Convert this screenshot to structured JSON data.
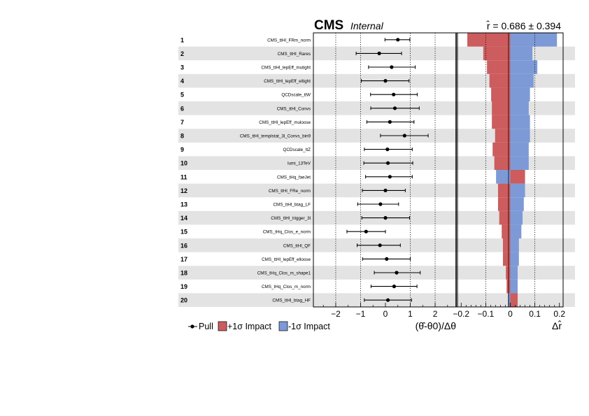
{
  "header": {
    "cms": "CMS",
    "internal": "Internal",
    "rhat_text": "r̂ = 0.686 ± 0.394"
  },
  "legend": {
    "pull": "Pull",
    "plus": "+1σ Impact",
    "minus": "-1σ Impact"
  },
  "colors": {
    "plus_impact": "#cc5c5e",
    "minus_impact": "#7d9ad6",
    "band": "#e3e3e3",
    "point": "#000000"
  },
  "chart_data": {
    "type": "scatter",
    "title": "",
    "pull_axis": {
      "label": "(θ̂-θ0)/Δθ",
      "range": [
        -2.9,
        2.9
      ],
      "ticks": [
        -2,
        -1,
        0,
        1,
        2
      ],
      "tick_labels": [
        "−2",
        "−1",
        "0",
        "1",
        "2"
      ],
      "dotted_lines": [
        -2,
        -1,
        1,
        2
      ]
    },
    "impact_axis": {
      "label": "Δr̂",
      "range": [
        -0.215,
        0.215
      ],
      "ticks": [
        -0.2,
        -0.1,
        0,
        0.1,
        0.2
      ],
      "tick_labels": [
        "−0.2",
        "−0.1",
        "0",
        "0.1",
        "0.2"
      ],
      "dotted_lines": [
        -0.1,
        0.1
      ]
    },
    "rows": [
      {
        "rank": "1",
        "name": "CMS_ttHl_FRm_norm",
        "pull": 0.5,
        "err_lo": 0.52,
        "err_hi": 0.48,
        "plus": -0.175,
        "minus": 0.19
      },
      {
        "rank": "2",
        "name": "CMS_ttHl_Rares",
        "pull": -0.25,
        "err_lo": 0.93,
        "err_hi": 0.9,
        "plus": -0.11,
        "minus": 0.09
      },
      {
        "rank": "3",
        "name": "CMS_ttHl_lepEff_mutight",
        "pull": 0.25,
        "err_lo": 0.93,
        "err_hi": 0.95,
        "plus": -0.095,
        "minus": 0.11
      },
      {
        "rank": "4",
        "name": "CMS_ttHl_lepEff_eltight",
        "pull": 0.0,
        "err_lo": 0.97,
        "err_hi": 0.95,
        "plus": -0.085,
        "minus": 0.095
      },
      {
        "rank": "5",
        "name": "QCDscale_ttW",
        "pull": 0.33,
        "err_lo": 0.93,
        "err_hi": 0.95,
        "plus": -0.078,
        "minus": 0.08
      },
      {
        "rank": "6",
        "name": "CMS_ttHl_Convs",
        "pull": 0.38,
        "err_lo": 0.97,
        "err_hi": 0.98,
        "plus": -0.075,
        "minus": 0.075
      },
      {
        "rank": "7",
        "name": "CMS_ttHl_lepEff_muloose",
        "pull": 0.18,
        "err_lo": 0.93,
        "err_hi": 0.97,
        "plus": -0.075,
        "minus": 0.08
      },
      {
        "rank": "8",
        "name": "CMS_ttHl_templstat_3l_Convs_bin9",
        "pull": 0.77,
        "err_lo": 0.97,
        "err_hi": 0.95,
        "plus": -0.062,
        "minus": 0.08
      },
      {
        "rank": "9",
        "name": "QCDscale_ttZ",
        "pull": 0.08,
        "err_lo": 0.93,
        "err_hi": 1.0,
        "plus": -0.072,
        "minus": 0.075
      },
      {
        "rank": "10",
        "name": "lumi_13TeV",
        "pull": 0.1,
        "err_lo": 0.97,
        "err_hi": 1.0,
        "plus": -0.065,
        "minus": 0.075
      },
      {
        "rank": "11",
        "name": "CMS_tHq_faeJet",
        "pull": 0.18,
        "err_lo": 0.98,
        "err_hi": 0.9,
        "plus": 0.06,
        "minus": -0.058
      },
      {
        "rank": "12",
        "name": "CMS_ttHl_FRe_norm",
        "pull": 0.0,
        "err_lo": 0.93,
        "err_hi": 0.8,
        "plus": -0.05,
        "minus": 0.06
      },
      {
        "rank": "13",
        "name": "CMS_ttHl_btag_LF",
        "pull": -0.2,
        "err_lo": 0.92,
        "err_hi": 0.73,
        "plus": -0.05,
        "minus": 0.055
      },
      {
        "rank": "14",
        "name": "CMS_ttHl_trigger_3l",
        "pull": 0.0,
        "err_lo": 0.95,
        "err_hi": 0.97,
        "plus": -0.045,
        "minus": 0.05
      },
      {
        "rank": "15",
        "name": "CMS_tHq_Clos_e_norm",
        "pull": -0.78,
        "err_lo": 0.77,
        "err_hi": 0.78,
        "plus": -0.035,
        "minus": 0.045
      },
      {
        "rank": "16",
        "name": "CMS_ttHl_QF",
        "pull": -0.22,
        "err_lo": 0.92,
        "err_hi": 0.82,
        "plus": -0.03,
        "minus": 0.035
      },
      {
        "rank": "17",
        "name": "CMS_ttHl_lepEff_elloose",
        "pull": 0.05,
        "err_lo": 0.97,
        "err_hi": 0.95,
        "plus": -0.03,
        "minus": 0.035
      },
      {
        "rank": "18",
        "name": "CMS_tHq_Clos_m_shape1",
        "pull": 0.45,
        "err_lo": 0.9,
        "err_hi": 0.95,
        "plus": -0.018,
        "minus": 0.03
      },
      {
        "rank": "19",
        "name": "CMS_tHq_Clos_m_norm",
        "pull": 0.35,
        "err_lo": 0.93,
        "err_hi": 0.92,
        "plus": -0.015,
        "minus": 0.03
      },
      {
        "rank": "20",
        "name": "CMS_ttHl_btag_HF",
        "pull": 0.1,
        "err_lo": 0.95,
        "err_hi": 0.95,
        "plus": 0.03,
        "minus": -0.01
      }
    ]
  }
}
